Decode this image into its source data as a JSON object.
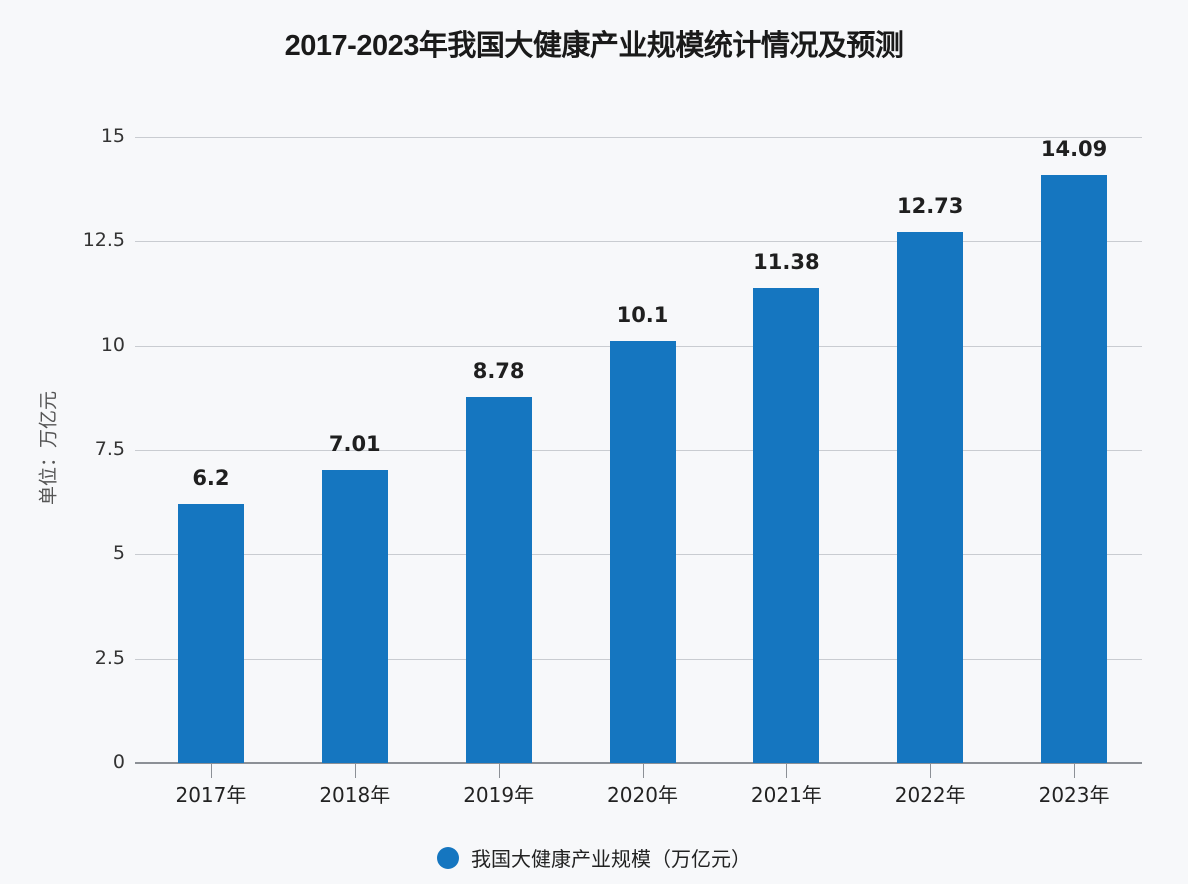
{
  "chart_data": {
    "type": "bar",
    "title": "2017-2023年我国大健康产业规模统计情况及预测",
    "xlabel": "",
    "ylabel": "单位：万亿元",
    "categories": [
      "2017年",
      "2018年",
      "2019年",
      "2020年",
      "2021年",
      "2022年",
      "2023年"
    ],
    "series": [
      {
        "name": "我国大健康产业规模（万亿元）",
        "values": [
          6.2,
          7.01,
          8.78,
          10.1,
          11.38,
          12.73,
          14.09
        ],
        "color": "#1576c0"
      }
    ],
    "value_labels": [
      "6.2",
      "7.01",
      "8.78",
      "10.1",
      "11.38",
      "12.73",
      "14.09"
    ],
    "yticks": [
      "0",
      "2.5",
      "5",
      "7.5",
      "10",
      "12.5",
      "15"
    ],
    "ylim": [
      0,
      15
    ],
    "grid": true,
    "legend_position": "bottom"
  },
  "legend": {
    "label": "我国大健康产业规模（万亿元）"
  }
}
